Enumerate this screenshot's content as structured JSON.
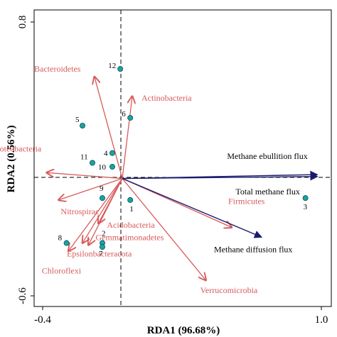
{
  "chart_data": {
    "type": "scatter",
    "subtype": "rda-biplot",
    "xlabel": "RDA1 (96.68%)",
    "ylabel": "RDA2 (0.56%)",
    "xlim": [
      -0.4,
      1.0
    ],
    "ylim": [
      -0.6,
      0.8
    ],
    "x_ticks": [
      "-0.4",
      "1.0"
    ],
    "y_ticks": [
      "-0.6",
      "0.8"
    ],
    "grid": false,
    "reference_lines": "dashed lines at x = 0 and y = 0",
    "colors": {
      "species": "#d85a5a",
      "environment": "#1a1a6e",
      "site_fill": "#1aa3a3"
    },
    "species_arrows": [
      {
        "name": "Bacteroidetes",
        "x": -0.14,
        "y": 0.52
      },
      {
        "name": "Actinobacteria",
        "x": 0.05,
        "y": 0.42
      },
      {
        "name": "Proteobacteria",
        "x": -0.38,
        "y": 0.03
      },
      {
        "name": "Nitrospirae",
        "x": -0.32,
        "y": -0.11
      },
      {
        "name": "Acidobacteria",
        "x": -0.12,
        "y": -0.23
      },
      {
        "name": "Gemmatimonadetes",
        "x": -0.17,
        "y": -0.34
      },
      {
        "name": "Epsilonbacteracota",
        "x": -0.2,
        "y": -0.33
      },
      {
        "name": "Chloroflexi",
        "x": -0.27,
        "y": -0.37
      },
      {
        "name": "Firmicutes",
        "x": 0.55,
        "y": -0.25
      },
      {
        "name": "Verrucomicrobia",
        "x": 0.42,
        "y": -0.52
      }
    ],
    "env_arrows": [
      {
        "name": "Methane ebullition flux",
        "x": 0.98,
        "y": 0.02
      },
      {
        "name": "Total methane flux",
        "x": 0.98,
        "y": 0.01
      },
      {
        "name": "Methane diffusion flux",
        "x": 0.7,
        "y": -0.3
      }
    ],
    "sites": [
      {
        "label": "1",
        "x": 0.04,
        "y": -0.11
      },
      {
        "label": "2",
        "x": -0.1,
        "y": -0.33
      },
      {
        "label": "3",
        "x": 0.92,
        "y": -0.1
      },
      {
        "label": "4",
        "x": -0.05,
        "y": 0.13
      },
      {
        "label": "5",
        "x": -0.2,
        "y": 0.27
      },
      {
        "label": "6",
        "x": 0.04,
        "y": 0.31
      },
      {
        "label": "7",
        "x": -0.1,
        "y": -0.35
      },
      {
        "label": "8",
        "x": -0.28,
        "y": -0.33
      },
      {
        "label": "9",
        "x": -0.1,
        "y": -0.1
      },
      {
        "label": "10",
        "x": -0.05,
        "y": 0.06
      },
      {
        "label": "11",
        "x": -0.15,
        "y": 0.08
      },
      {
        "label": "12",
        "x": -0.01,
        "y": 0.56
      }
    ]
  },
  "species_labels": {
    "Bacteroidetes": "Bacteroidetes",
    "Actinobacteria": "Actinobacteria",
    "Proteobacteria": "Proteobacteria",
    "Nitrospirae": "Nitrospirac",
    "Acidobacteria": "Acidobacteria",
    "Gemmatimonadetes": "Gemmatimonadetes",
    "Epsilonbacteracota": "Epsilonbacteracota",
    "Chloroflexi": "Chloroflexi",
    "Firmicutes": "Firmicutes",
    "Verrucomicrobia": "Verrucomicrobia"
  },
  "env_labels": {
    "Methane ebullition flux": "Methane ebullition flux",
    "Total methane flux": "Total methane flux",
    "Methane diffusion flux": "Methane diffusion flux"
  }
}
